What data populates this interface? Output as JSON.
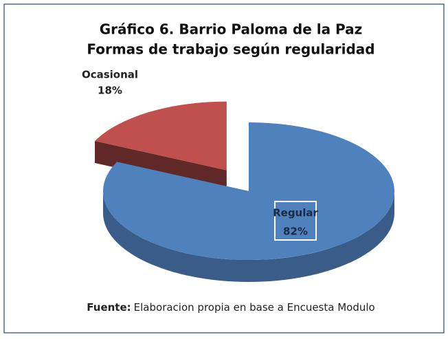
{
  "chart_data": {
    "type": "pie",
    "title": "Gráfico 6. Barrio Paloma de la Paz",
    "subtitle": "Formas de trabajo según regularidad",
    "categories": [
      "Regular",
      "Ocasional"
    ],
    "values": [
      82,
      18
    ],
    "value_labels": [
      "82%",
      "18%"
    ],
    "colors": [
      "#4f81bd",
      "#c0504d"
    ],
    "source_label": "Fuente:",
    "source_text": "Elaboracion propia en base a Encuesta Modulo"
  }
}
